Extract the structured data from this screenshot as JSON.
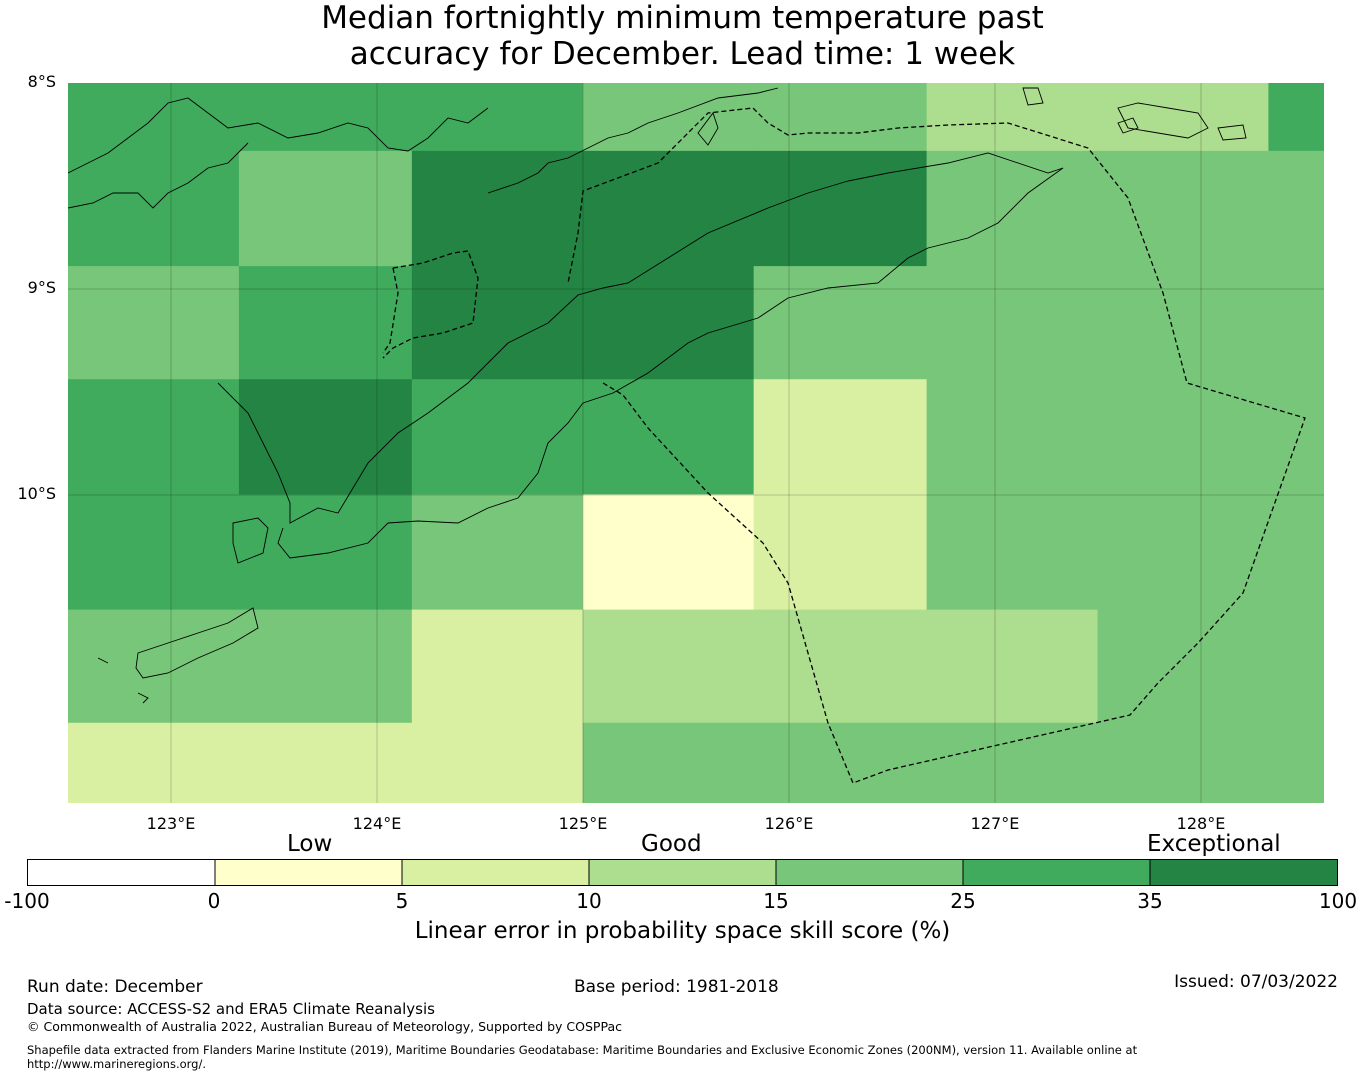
{
  "title": {
    "line1": "Median fortnightly minimum temperature past",
    "line2": "accuracy for December. Lead time: 1 week"
  },
  "axes": {
    "lat_labels": [
      "8°S",
      "9°S",
      "10°S"
    ],
    "lon_labels": [
      "123°E",
      "124°E",
      "125°E",
      "126°E",
      "127°E",
      "128°E"
    ],
    "lon_range": [
      122.5,
      128.6
    ],
    "lat_range": [
      -8.0,
      -11.5
    ]
  },
  "colorbar": {
    "title": "Linear error in probability space skill score (%)",
    "ticks": [
      "-100",
      "0",
      "5",
      "10",
      "15",
      "25",
      "35",
      "100"
    ],
    "categories": [
      "Low",
      "Good",
      "Exceptional"
    ],
    "colors": [
      "#ffffff",
      "#ffffcc",
      "#d9f0a3",
      "#addd8e",
      "#78c679",
      "#41ab5d",
      "#238443"
    ]
  },
  "chart_data": {
    "type": "heatmap",
    "value_classes": [
      "<0",
      "0-5",
      "5-10",
      "10-15",
      "15-25",
      "25-35",
      "35-100"
    ],
    "x_edges": [
      122.5,
      123.33,
      124.17,
      125.0,
      125.83,
      126.67,
      127.5,
      128.33,
      128.6
    ],
    "y_edges": [
      -8.0,
      -8.33,
      -8.89,
      -9.44,
      -10.0,
      -10.56,
      -11.11,
      -11.5
    ],
    "class_index_grid": [
      [
        5,
        5,
        5,
        4,
        4,
        3,
        3,
        5
      ],
      [
        5,
        4,
        6,
        6,
        6,
        4,
        4,
        4
      ],
      [
        4,
        5,
        6,
        6,
        4,
        4,
        4,
        4
      ],
      [
        5,
        6,
        5,
        5,
        2,
        4,
        4,
        4
      ],
      [
        5,
        5,
        4,
        1,
        2,
        4,
        4,
        4
      ],
      [
        4,
        4,
        2,
        3,
        3,
        3,
        4,
        4
      ],
      [
        2,
        2,
        2,
        4,
        4,
        4,
        4,
        4
      ]
    ]
  },
  "footer": {
    "run_date": "Run date: December",
    "base_period": "Base period: 1981-2018",
    "issued": "Issued: 07/03/2022",
    "data_source": "Data source: ACCESS-S2 and ERA5 Climate Reanalysis",
    "copyright": "© Commonwealth of Australia 2022, Australian Bureau of Meteorology, Supported by COSPPac",
    "shapefile_line1": "Shapefile data extracted from Flanders Marine Institute (2019), Maritime Boundaries Geodatabase: Maritime Boundaries and Exclusive Economic Zones (200NM), version 11. Available online at",
    "shapefile_line2": "http://www.marineregions.org/."
  }
}
